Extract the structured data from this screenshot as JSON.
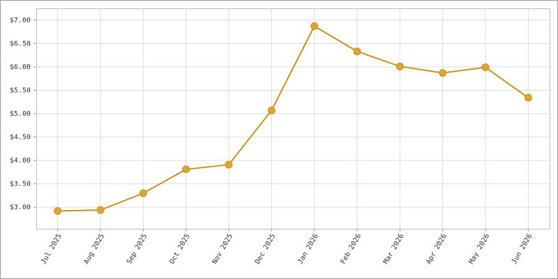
{
  "chart_data": {
    "type": "line",
    "categories": [
      "Jul 2025",
      "Aug 2025",
      "Sep 2025",
      "Oct 2025",
      "Nov 2025",
      "Dec 2025",
      "Jan 2026",
      "Feb 2026",
      "Mar 2026",
      "Apr 2026",
      "May 2026",
      "Jun 2026"
    ],
    "values": [
      2.92,
      2.94,
      3.3,
      3.81,
      3.91,
      5.07,
      6.87,
      6.33,
      6.01,
      5.87,
      5.99,
      5.34
    ],
    "color": "#c8901e",
    "marker_color": "#e0a432",
    "ylim": [
      2.54,
      7.25
    ],
    "yticks": [
      {
        "value": 3,
        "label": "$3.00"
      },
      {
        "value": 3.5,
        "label": "$3.50"
      },
      {
        "value": 4,
        "label": "$4.00"
      },
      {
        "value": 4.5,
        "label": "$4.50"
      },
      {
        "value": 5,
        "label": "$5.00"
      },
      {
        "value": 5.5,
        "label": "$5.50"
      },
      {
        "value": 6,
        "label": "$6.00"
      },
      {
        "value": 6.5,
        "label": "$6.50"
      },
      {
        "value": 7,
        "label": "$7.00"
      }
    ],
    "grid": true
  }
}
